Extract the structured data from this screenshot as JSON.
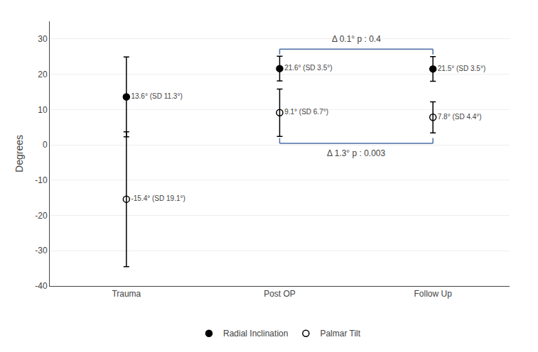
{
  "chart_data": {
    "type": "scatter",
    "categories": [
      "Trauma",
      "Post OP",
      "Follow Up"
    ],
    "series": [
      {
        "name": "Radial Inclination",
        "color": "black",
        "marker": "circle",
        "values": [
          13.6,
          21.6,
          21.5
        ],
        "errors": [
          11.3,
          3.5,
          3.5
        ],
        "value_labels": [
          "13.6° (SD 11.3°)",
          "21.6° (SD 3.5°)",
          "21.5° (SD 3.5°)"
        ]
      },
      {
        "name": "Palmar Tilt",
        "color": "black",
        "marker": "circle-open",
        "values": [
          -15.4,
          9.1,
          7.8
        ],
        "errors": [
          19.1,
          6.7,
          4.4
        ],
        "value_labels": [
          "-15.4° (SD 19.1°)",
          "9.1° (SD 6.7°)",
          "7.8° (SD 4.4°)"
        ]
      }
    ],
    "ylabel": "Degrees",
    "ylim": [
      -40,
      35
    ],
    "yticks": [
      -40,
      -30,
      -20,
      -10,
      0,
      10,
      20,
      30
    ],
    "grid": true,
    "legend": "bottom",
    "data_labels": true,
    "annotations": [
      {
        "text": "Δ 0.1° p : 0.4",
        "series": "Radial Inclination",
        "from": "Post OP",
        "to": "Follow Up"
      },
      {
        "text": "Δ 1.3° p : 0.003",
        "series": "Palmar Tilt",
        "from": "Post OP",
        "to": "Follow Up"
      }
    ]
  }
}
